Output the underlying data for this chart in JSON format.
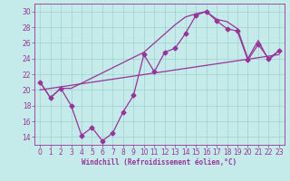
{
  "xlabel": "Windchill (Refroidissement éolien,°C)",
  "xlim": [
    -0.5,
    23.5
  ],
  "ylim": [
    13,
    31
  ],
  "xticks": [
    0,
    1,
    2,
    3,
    4,
    5,
    6,
    7,
    8,
    9,
    10,
    11,
    12,
    13,
    14,
    15,
    16,
    17,
    18,
    19,
    20,
    21,
    22,
    23
  ],
  "yticks": [
    14,
    16,
    18,
    20,
    22,
    24,
    26,
    28,
    30
  ],
  "bg_color": "#c5eaea",
  "grid_color": "#9fcfcf",
  "line_color": "#993399",
  "curve1_x": [
    0,
    1,
    2,
    3,
    4,
    5,
    6,
    7,
    8,
    9,
    10,
    11,
    12,
    13,
    14,
    15,
    16,
    17,
    18,
    19,
    20,
    21,
    22,
    23
  ],
  "curve1_y": [
    21.0,
    19.0,
    20.2,
    18.0,
    14.2,
    15.2,
    13.5,
    14.5,
    17.2,
    19.3,
    24.5,
    22.3,
    24.8,
    25.3,
    27.2,
    29.5,
    30.0,
    28.8,
    27.8,
    27.5,
    23.8,
    25.8,
    24.0,
    25.0
  ],
  "curve2_x": [
    0,
    1,
    2,
    3,
    10,
    13,
    14,
    15,
    16,
    17,
    18,
    19,
    20,
    21,
    22,
    23
  ],
  "curve2_y": [
    21.0,
    19.0,
    20.2,
    20.2,
    24.8,
    28.3,
    29.3,
    29.7,
    30.0,
    29.0,
    28.7,
    27.8,
    24.0,
    26.3,
    23.8,
    25.0
  ],
  "curve3_x": [
    0,
    23
  ],
  "curve3_y": [
    20.0,
    24.5
  ]
}
